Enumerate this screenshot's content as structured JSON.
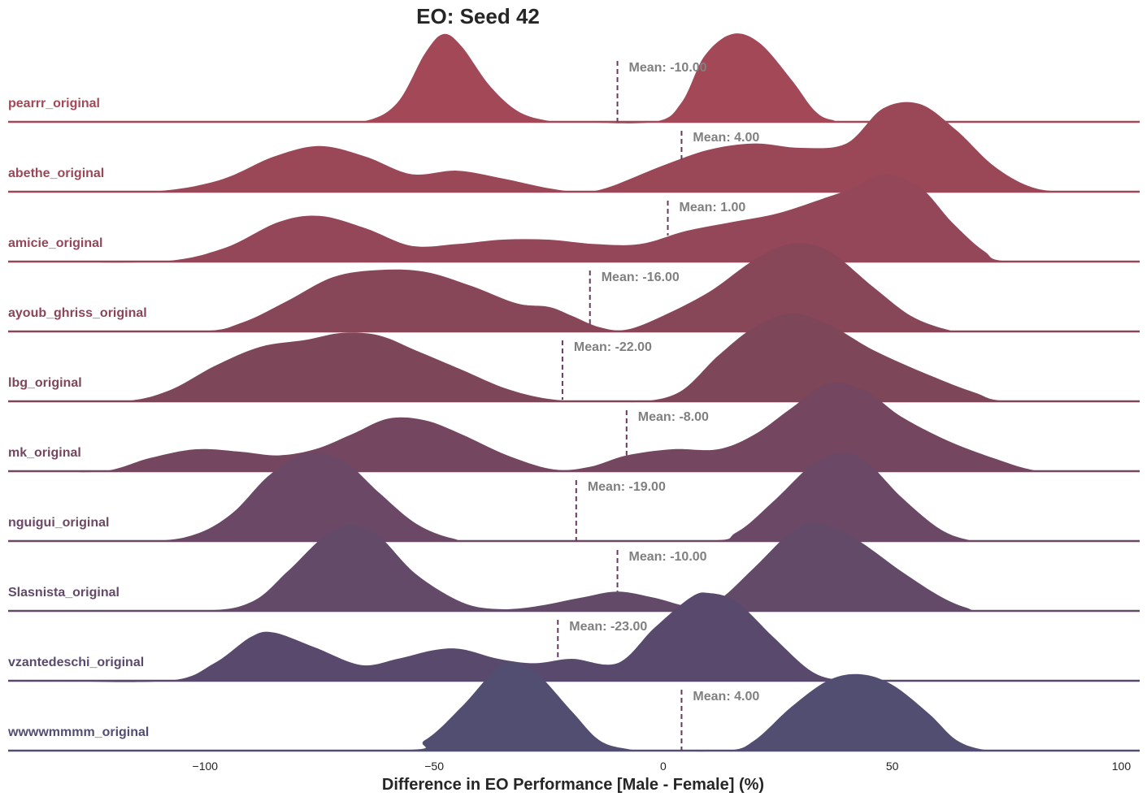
{
  "chart_data": {
    "type": "ridgeline",
    "title": "EO: Seed 42",
    "xlabel": "Difference in EO Performance [Male - Female] (%)",
    "xlim": [
      -143,
      104
    ],
    "xticks": [
      -100,
      -50,
      0,
      50,
      100
    ],
    "mean_label_prefix": "Mean: ",
    "series": [
      {
        "name": "pearrr_original",
        "color": "#a24857",
        "mean": -10.0,
        "mean_label": "-10.00",
        "density": [
          [
            -135,
            0
          ],
          [
            -75,
            0
          ],
          [
            -65,
            0.01
          ],
          [
            -58,
            0.22
          ],
          [
            -52,
            0.78
          ],
          [
            -48,
            1.0
          ],
          [
            -44,
            0.86
          ],
          [
            -38,
            0.42
          ],
          [
            -32,
            0.13
          ],
          [
            -26,
            0.02
          ],
          [
            -20,
            0
          ],
          [
            -2,
            0
          ],
          [
            4,
            0.22
          ],
          [
            9,
            0.75
          ],
          [
            15,
            1.0
          ],
          [
            21,
            0.9
          ],
          [
            28,
            0.48
          ],
          [
            33,
            0.13
          ],
          [
            37,
            0.02
          ],
          [
            44,
            0
          ],
          [
            104,
            0
          ]
        ]
      },
      {
        "name": "abethe_original",
        "color": "#9a4858",
        "mean": 4.0,
        "mean_label": "4.00",
        "density": [
          [
            -135,
            0
          ],
          [
            -112,
            0
          ],
          [
            -97,
            0.13
          ],
          [
            -85,
            0.4
          ],
          [
            -75,
            0.52
          ],
          [
            -65,
            0.4
          ],
          [
            -55,
            0.2
          ],
          [
            -45,
            0.24
          ],
          [
            -35,
            0.15
          ],
          [
            -25,
            0.04
          ],
          [
            -18,
            0
          ],
          [
            -12,
            0.05
          ],
          [
            0,
            0.3
          ],
          [
            10,
            0.48
          ],
          [
            20,
            0.55
          ],
          [
            30,
            0.5
          ],
          [
            40,
            0.55
          ],
          [
            48,
            0.95
          ],
          [
            56,
            1.0
          ],
          [
            64,
            0.7
          ],
          [
            72,
            0.3
          ],
          [
            80,
            0.06
          ],
          [
            88,
            0
          ],
          [
            104,
            0
          ]
        ]
      },
      {
        "name": "amicie_original",
        "color": "#934758",
        "mean": 1.0,
        "mean_label": "1.00",
        "density": [
          [
            -135,
            0
          ],
          [
            -110,
            0
          ],
          [
            -96,
            0.15
          ],
          [
            -84,
            0.45
          ],
          [
            -75,
            0.52
          ],
          [
            -65,
            0.38
          ],
          [
            -55,
            0.18
          ],
          [
            -45,
            0.2
          ],
          [
            -35,
            0.25
          ],
          [
            -25,
            0.25
          ],
          [
            -15,
            0.2
          ],
          [
            -5,
            0.2
          ],
          [
            5,
            0.35
          ],
          [
            15,
            0.45
          ],
          [
            25,
            0.55
          ],
          [
            35,
            0.72
          ],
          [
            42,
            0.85
          ],
          [
            48,
            1.0
          ],
          [
            56,
            0.85
          ],
          [
            63,
            0.45
          ],
          [
            70,
            0.12
          ],
          [
            76,
            0
          ],
          [
            104,
            0
          ]
        ]
      },
      {
        "name": "ayoub_ghriss_original",
        "color": "#884659",
        "mean": -16.0,
        "mean_label": "-16.00",
        "density": [
          [
            -135,
            0
          ],
          [
            -102,
            0
          ],
          [
            -92,
            0.1
          ],
          [
            -82,
            0.35
          ],
          [
            -72,
            0.62
          ],
          [
            -62,
            0.7
          ],
          [
            -52,
            0.68
          ],
          [
            -42,
            0.52
          ],
          [
            -32,
            0.32
          ],
          [
            -25,
            0.28
          ],
          [
            -20,
            0.18
          ],
          [
            -14,
            0.05
          ],
          [
            -8,
            0.02
          ],
          [
            0,
            0.18
          ],
          [
            10,
            0.45
          ],
          [
            20,
            0.82
          ],
          [
            28,
            1.0
          ],
          [
            36,
            0.92
          ],
          [
            46,
            0.5
          ],
          [
            54,
            0.18
          ],
          [
            62,
            0.02
          ],
          [
            68,
            0
          ],
          [
            104,
            0
          ]
        ]
      },
      {
        "name": "lbg_original",
        "color": "#7e4659",
        "mean": -22.0,
        "mean_label": "-22.00",
        "density": [
          [
            -135,
            0
          ],
          [
            -118,
            0
          ],
          [
            -108,
            0.12
          ],
          [
            -98,
            0.4
          ],
          [
            -88,
            0.62
          ],
          [
            -78,
            0.7
          ],
          [
            -70,
            0.78
          ],
          [
            -62,
            0.75
          ],
          [
            -54,
            0.58
          ],
          [
            -44,
            0.36
          ],
          [
            -34,
            0.14
          ],
          [
            -24,
            0.02
          ],
          [
            -12,
            0
          ],
          [
            -4,
            0
          ],
          [
            4,
            0.12
          ],
          [
            12,
            0.52
          ],
          [
            20,
            0.85
          ],
          [
            28,
            1.0
          ],
          [
            36,
            0.88
          ],
          [
            46,
            0.58
          ],
          [
            58,
            0.3
          ],
          [
            68,
            0.1
          ],
          [
            76,
            0
          ],
          [
            104,
            0
          ]
        ]
      },
      {
        "name": "mk_original",
        "color": "#744660",
        "mean": -8.0,
        "mean_label": "-8.00",
        "density": [
          [
            -135,
            0
          ],
          [
            -122,
            0
          ],
          [
            -112,
            0.15
          ],
          [
            -102,
            0.25
          ],
          [
            -92,
            0.22
          ],
          [
            -84,
            0.18
          ],
          [
            -76,
            0.25
          ],
          [
            -68,
            0.42
          ],
          [
            -60,
            0.6
          ],
          [
            -52,
            0.58
          ],
          [
            -44,
            0.42
          ],
          [
            -34,
            0.18
          ],
          [
            -24,
            0.02
          ],
          [
            -16,
            0.05
          ],
          [
            -8,
            0.18
          ],
          [
            2,
            0.25
          ],
          [
            12,
            0.25
          ],
          [
            20,
            0.42
          ],
          [
            28,
            0.72
          ],
          [
            36,
            1.0
          ],
          [
            44,
            0.92
          ],
          [
            52,
            0.62
          ],
          [
            62,
            0.35
          ],
          [
            72,
            0.15
          ],
          [
            80,
            0.02
          ],
          [
            86,
            0
          ],
          [
            104,
            0
          ]
        ]
      },
      {
        "name": "nguigui_original",
        "color": "#6b4966",
        "mean": -19.0,
        "mean_label": "-19.00",
        "density": [
          [
            -135,
            0
          ],
          [
            -112,
            0
          ],
          [
            -102,
            0.08
          ],
          [
            -94,
            0.32
          ],
          [
            -86,
            0.75
          ],
          [
            -78,
            1.0
          ],
          [
            -70,
            0.92
          ],
          [
            -62,
            0.55
          ],
          [
            -54,
            0.2
          ],
          [
            -46,
            0.03
          ],
          [
            -38,
            0
          ],
          [
            8,
            0
          ],
          [
            16,
            0.1
          ],
          [
            24,
            0.45
          ],
          [
            32,
            0.85
          ],
          [
            38,
            1.0
          ],
          [
            44,
            0.92
          ],
          [
            52,
            0.5
          ],
          [
            60,
            0.15
          ],
          [
            66,
            0.02
          ],
          [
            72,
            0
          ],
          [
            104,
            0
          ]
        ]
      },
      {
        "name": "Slasnista_original",
        "color": "#624a68",
        "mean": -10.0,
        "mean_label": "-10.00",
        "density": [
          [
            -135,
            0
          ],
          [
            -102,
            0
          ],
          [
            -90,
            0.1
          ],
          [
            -82,
            0.45
          ],
          [
            -74,
            0.85
          ],
          [
            -68,
            0.98
          ],
          [
            -62,
            0.85
          ],
          [
            -54,
            0.42
          ],
          [
            -44,
            0.1
          ],
          [
            -36,
            0.02
          ],
          [
            -28,
            0.05
          ],
          [
            -18,
            0.15
          ],
          [
            -10,
            0.22
          ],
          [
            -2,
            0.15
          ],
          [
            6,
            0.05
          ],
          [
            12,
            0.12
          ],
          [
            20,
            0.5
          ],
          [
            28,
            0.9
          ],
          [
            34,
            1.0
          ],
          [
            42,
            0.82
          ],
          [
            52,
            0.45
          ],
          [
            60,
            0.18
          ],
          [
            66,
            0.04
          ],
          [
            72,
            0
          ],
          [
            104,
            0
          ]
        ]
      },
      {
        "name": "vzantedeschi_original",
        "color": "#594a6d",
        "mean": -23.0,
        "mean_label": "-23.00",
        "density": [
          [
            -135,
            0
          ],
          [
            -108,
            0
          ],
          [
            -98,
            0.2
          ],
          [
            -90,
            0.5
          ],
          [
            -85,
            0.55
          ],
          [
            -76,
            0.38
          ],
          [
            -66,
            0.18
          ],
          [
            -58,
            0.25
          ],
          [
            -50,
            0.35
          ],
          [
            -44,
            0.36
          ],
          [
            -36,
            0.25
          ],
          [
            -28,
            0.2
          ],
          [
            -20,
            0.25
          ],
          [
            -10,
            0.2
          ],
          [
            -2,
            0.6
          ],
          [
            6,
            0.95
          ],
          [
            10,
            1.0
          ],
          [
            16,
            0.9
          ],
          [
            24,
            0.5
          ],
          [
            32,
            0.12
          ],
          [
            38,
            0.01
          ],
          [
            44,
            0
          ],
          [
            104,
            0
          ]
        ]
      },
      {
        "name": "wwwwmmmm_original",
        "color": "#524e72",
        "mean": 4.0,
        "mean_label": "4.00",
        "density": [
          [
            -135,
            0
          ],
          [
            -60,
            0
          ],
          [
            -52,
            0.12
          ],
          [
            -44,
            0.5
          ],
          [
            -38,
            0.85
          ],
          [
            -34,
            1.0
          ],
          [
            -28,
            0.9
          ],
          [
            -20,
            0.45
          ],
          [
            -14,
            0.12
          ],
          [
            -8,
            0.02
          ],
          [
            -2,
            0
          ],
          [
            14,
            0
          ],
          [
            20,
            0.12
          ],
          [
            28,
            0.5
          ],
          [
            36,
            0.8
          ],
          [
            43,
            0.87
          ],
          [
            50,
            0.75
          ],
          [
            58,
            0.42
          ],
          [
            64,
            0.12
          ],
          [
            70,
            0.01
          ],
          [
            76,
            0
          ],
          [
            104,
            0
          ]
        ]
      }
    ]
  }
}
